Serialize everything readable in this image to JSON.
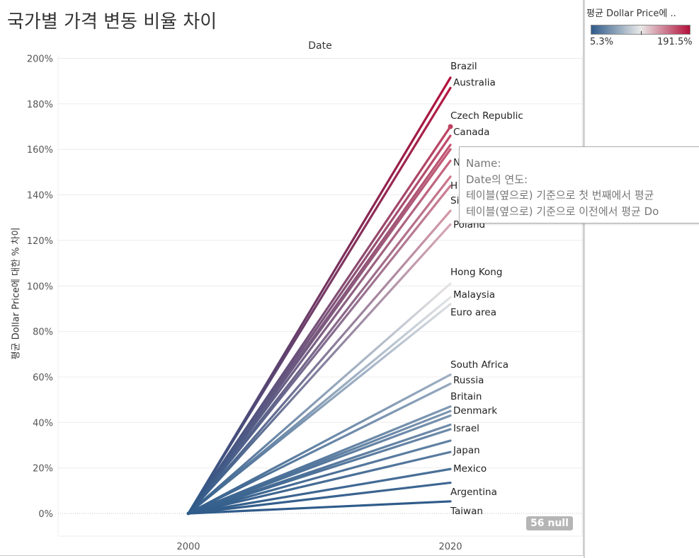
{
  "title": "국가별 가격 변동 비율 차이",
  "column_header": "Date",
  "legend": {
    "title": "평균 Dollar Price에 ..",
    "min_label": "5.3%",
    "max_label": "191.5%",
    "min_color": "#2f5b8a",
    "mid_color": "#e8e8e8",
    "max_color": "#b3103a"
  },
  "null_badge": "56 null",
  "tooltip": {
    "line1": "Name:",
    "line2": "Date의 연도:",
    "line3": "테이블(옆으로) 기준으로 첫 번째에서 평균",
    "line4": "테이블(옆으로) 기준으로 이전에서 평균 Do"
  },
  "chart_data": {
    "type": "line",
    "title": "국가별 가격 변동 비율 차이",
    "xlabel": "Date",
    "ylabel": "평균 Dollar Price에 대한 % 차이",
    "x": [
      2000,
      2020
    ],
    "x_tick_labels": [
      "2000",
      "2020"
    ],
    "y_ticks": [
      0,
      20,
      40,
      60,
      80,
      100,
      120,
      140,
      160,
      180,
      200
    ],
    "y_tick_labels": [
      "0%",
      "20%",
      "40%",
      "60%",
      "80%",
      "100%",
      "120%",
      "140%",
      "160%",
      "180%",
      "200%"
    ],
    "ylim": [
      -10,
      205
    ],
    "grid": true,
    "legend_placement": "top-right",
    "color_range": [
      5.3,
      191.5
    ],
    "series_values_2020": [
      191.5,
      187,
      170,
      166,
      162,
      160,
      155,
      148,
      144,
      133,
      127,
      101,
      95,
      92,
      61,
      57,
      47,
      45,
      43,
      39,
      37,
      32,
      27,
      19.5,
      13.5,
      5.3
    ],
    "series": [
      {
        "name": "Brazil",
        "values": [
          0,
          191.5
        ]
      },
      {
        "name": "Australia",
        "values": [
          0,
          187
        ]
      },
      {
        "name": "Czech Republic",
        "values": [
          0,
          170
        ]
      },
      {
        "name": "Canada",
        "values": [
          0,
          166
        ]
      },
      {
        "name": "",
        "values": [
          0,
          162
        ]
      },
      {
        "name": "",
        "values": [
          0,
          160
        ]
      },
      {
        "name": "",
        "values": [
          0,
          155
        ]
      },
      {
        "name": "",
        "values": [
          0,
          148
        ]
      },
      {
        "name": "",
        "values": [
          0,
          144
        ]
      },
      {
        "name": "",
        "values": [
          0,
          133
        ]
      },
      {
        "name": "Poland",
        "values": [
          0,
          127
        ]
      },
      {
        "name": "Hong Kong",
        "values": [
          0,
          101
        ]
      },
      {
        "name": "Malaysia",
        "values": [
          0,
          95
        ]
      },
      {
        "name": "Euro area",
        "values": [
          0,
          92
        ]
      },
      {
        "name": "South Africa",
        "values": [
          0,
          61
        ]
      },
      {
        "name": "Russia",
        "values": [
          0,
          57
        ]
      },
      {
        "name": "Britain",
        "values": [
          0,
          47
        ]
      },
      {
        "name": "Denmark",
        "values": [
          0,
          45
        ]
      },
      {
        "name": "",
        "values": [
          0,
          43
        ]
      },
      {
        "name": "Israel",
        "values": [
          0,
          39
        ]
      },
      {
        "name": "",
        "values": [
          0,
          37
        ]
      },
      {
        "name": "",
        "values": [
          0,
          32
        ]
      },
      {
        "name": "Japan",
        "values": [
          0,
          27
        ]
      },
      {
        "name": "Mexico",
        "values": [
          0,
          19.5
        ]
      },
      {
        "name": "Argentina",
        "values": [
          0,
          13.5
        ]
      },
      {
        "name": "Taiwan",
        "values": [
          0,
          5.3
        ]
      }
    ],
    "visible_labels": [
      {
        "text": "Brazil",
        "value": 191.5
      },
      {
        "text": "Australia",
        "value": 187
      },
      {
        "text": "Czech Republic",
        "value": 170
      },
      {
        "text": "Canada",
        "value": 166
      },
      {
        "text": "N",
        "value": 153
      },
      {
        "text": "H",
        "value": 143
      },
      {
        "text": "Si",
        "value": 136
      },
      {
        "text": "Poland",
        "value": 127
      },
      {
        "text": "Hong Kong",
        "value": 101
      },
      {
        "text": "Malaysia",
        "value": 95
      },
      {
        "text": "Euro area",
        "value": 92
      },
      {
        "text": "South Africa",
        "value": 61
      },
      {
        "text": "Russia",
        "value": 57
      },
      {
        "text": "Britain",
        "value": 47
      },
      {
        "text": "Denmark",
        "value": 45
      },
      {
        "text": "Israel",
        "value": 39
      },
      {
        "text": "Japan",
        "value": 27
      },
      {
        "text": "Mexico",
        "value": 19.5
      },
      {
        "text": "Argentina",
        "value": 13.5
      },
      {
        "text": "Taiwan",
        "value": 5.3
      }
    ]
  }
}
